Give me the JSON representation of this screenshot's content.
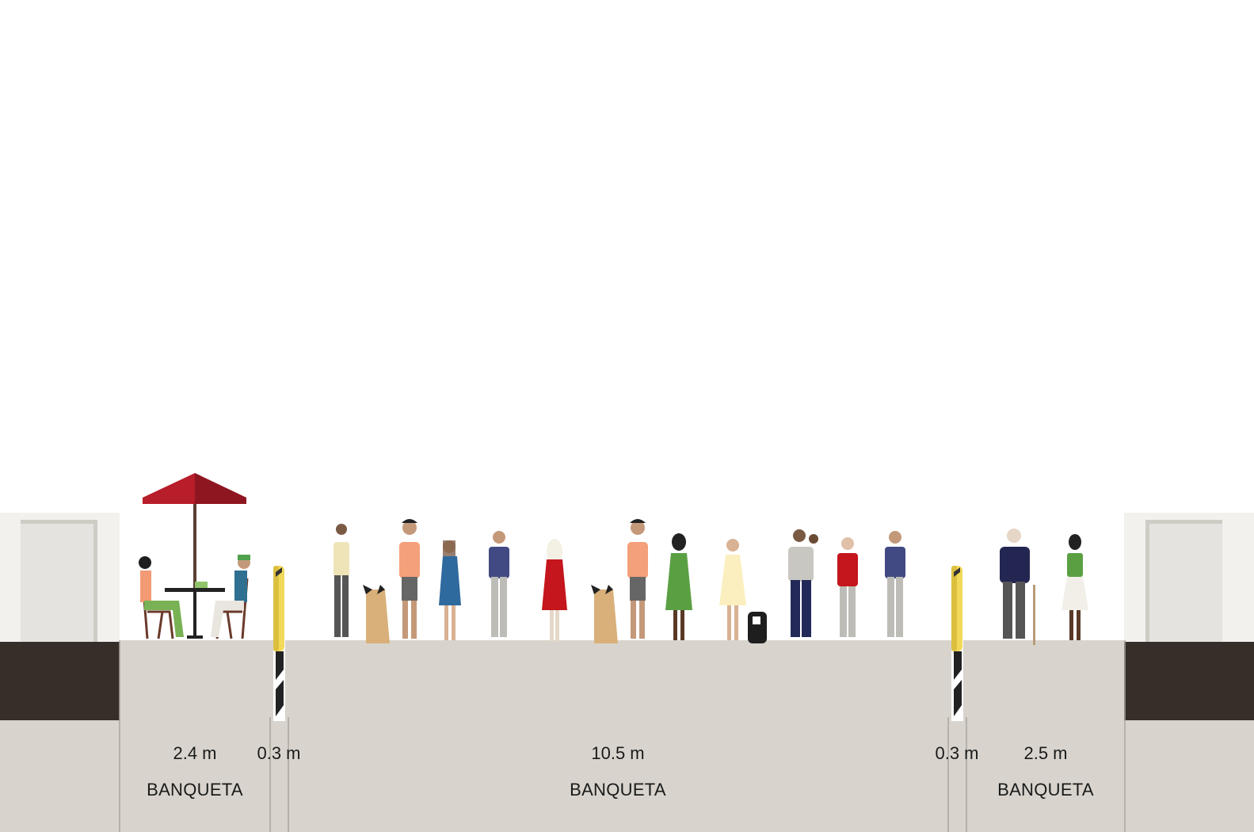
{
  "colors": {
    "sky": "#ffffff",
    "pavement": "#d8d4cd",
    "divider": "#a9a49c",
    "curb_dark": "#362e29",
    "building_wall": "#f2f1ed",
    "building_door": "#e4e3df",
    "bollard_yellow": "#f2d95a",
    "umbrella": "#b81d2a"
  },
  "segments": [
    {
      "id": "sidewalk-left",
      "width": "2.4 m",
      "name": "BANQUETA"
    },
    {
      "id": "planter-left",
      "width": "0.3 m",
      "name": ""
    },
    {
      "id": "sidewalk-main",
      "width": "10.5 m",
      "name": "BANQUETA"
    },
    {
      "id": "planter-right",
      "width": "0.3 m",
      "name": ""
    },
    {
      "id": "sidewalk-right",
      "width": "2.5 m",
      "name": "BANQUETA"
    }
  ]
}
